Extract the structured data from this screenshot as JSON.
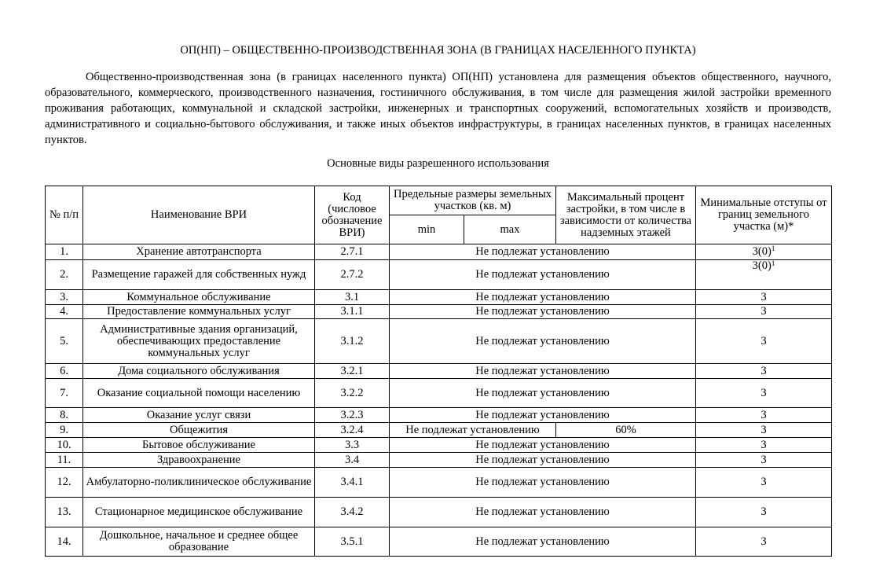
{
  "title": "ОП(НП) – ОБЩЕСТВЕННО-ПРОИЗВОДСТВЕННАЯ ЗОНА (В ГРАНИЦАХ НАСЕЛЕННОГО ПУНКТА)",
  "intro": "Общественно-производственная зона (в границах населенного пункта) ОП(НП) установлена для размещения объектов общественного, научного, образовательного, коммерческого, производственного назначения, гостиничного обслуживания, в том числе для размещения жилой застройки временного проживания работающих, коммунальной и складской застройки, инженерных и транспортных сооружений, вспомогательных хозяйств и производств, административного и социально-бытового обслуживания, и также иных объектов инфраструктуры, в границах населенных пунктов, в границах населенных пунктов.",
  "subtitle": "Основные виды разрешенного использования",
  "headers": {
    "num": "№ п/п",
    "name": "Наименование ВРИ",
    "code": "Код (числовое обозначение ВРИ)",
    "sizes": "Предельные размеры земельных участков (кв. м)",
    "min": "min",
    "max": "max",
    "percent": "Максимальный процент застройки, в том числе в зависимости от количества надземных этажей",
    "setback": "Минимальные отступы от границ земельного участка (м)*"
  },
  "merged_text": "Не подлежат установлению",
  "rows": [
    {
      "num": "1.",
      "name": "Хранение автотранспорта",
      "code": "2.7.1",
      "setback": "3(0)",
      "sup": "1",
      "h": 20
    },
    {
      "num": "2.",
      "name": "Размещение гаражей для собственных нужд",
      "code": "2.7.2",
      "setback": "3(0)",
      "sup": "1",
      "h": 38
    },
    {
      "num": "3.",
      "name": "Коммунальное обслуживание",
      "code": "3.1",
      "setback": "3",
      "h": 19
    },
    {
      "num": "4.",
      "name": "Предоставление коммунальных услуг",
      "code": "3.1.1",
      "setback": "3",
      "h": 18
    },
    {
      "num": "5.",
      "name": "Административные здания организаций, обеспечивающих предоставление коммунальных услуг",
      "code": "3.1.2",
      "setback": "3",
      "h": 57
    },
    {
      "num": "6.",
      "name": "Дома социального обслуживания",
      "code": "3.2.1",
      "setback": "3",
      "h": 19
    },
    {
      "num": "7.",
      "name": "Оказание социальной помощи населению",
      "code": "3.2.2",
      "setback": "3",
      "h": 37
    },
    {
      "num": "8.",
      "name": "Оказание услуг связи",
      "code": "3.2.3",
      "setback": "3",
      "h": 19
    },
    {
      "num": "9.",
      "name": "Общежития",
      "code": "3.2.4",
      "sizes": "Не подлежат установлению",
      "percent": "60%",
      "setback": "3",
      "h": 19
    },
    {
      "num": "10.",
      "name": "Бытовое обслуживание",
      "code": "3.3",
      "setback": "3",
      "h": 19
    },
    {
      "num": "11.",
      "name": "Здравоохранение",
      "code": "3.4",
      "setback": "3",
      "h": 19
    },
    {
      "num": "12.",
      "name": "Амбулаторно-поликлиническое обслуживание",
      "code": "3.4.1",
      "setback": "3",
      "h": 38
    },
    {
      "num": "13.",
      "name": "Стационарное медицинское обслуживание",
      "code": "3.4.2",
      "setback": "3",
      "h": 38
    },
    {
      "num": "14.",
      "name": "Дошкольное, начальное и среднее общее образование",
      "code": "3.5.1",
      "setback": "3",
      "h": 37
    }
  ]
}
